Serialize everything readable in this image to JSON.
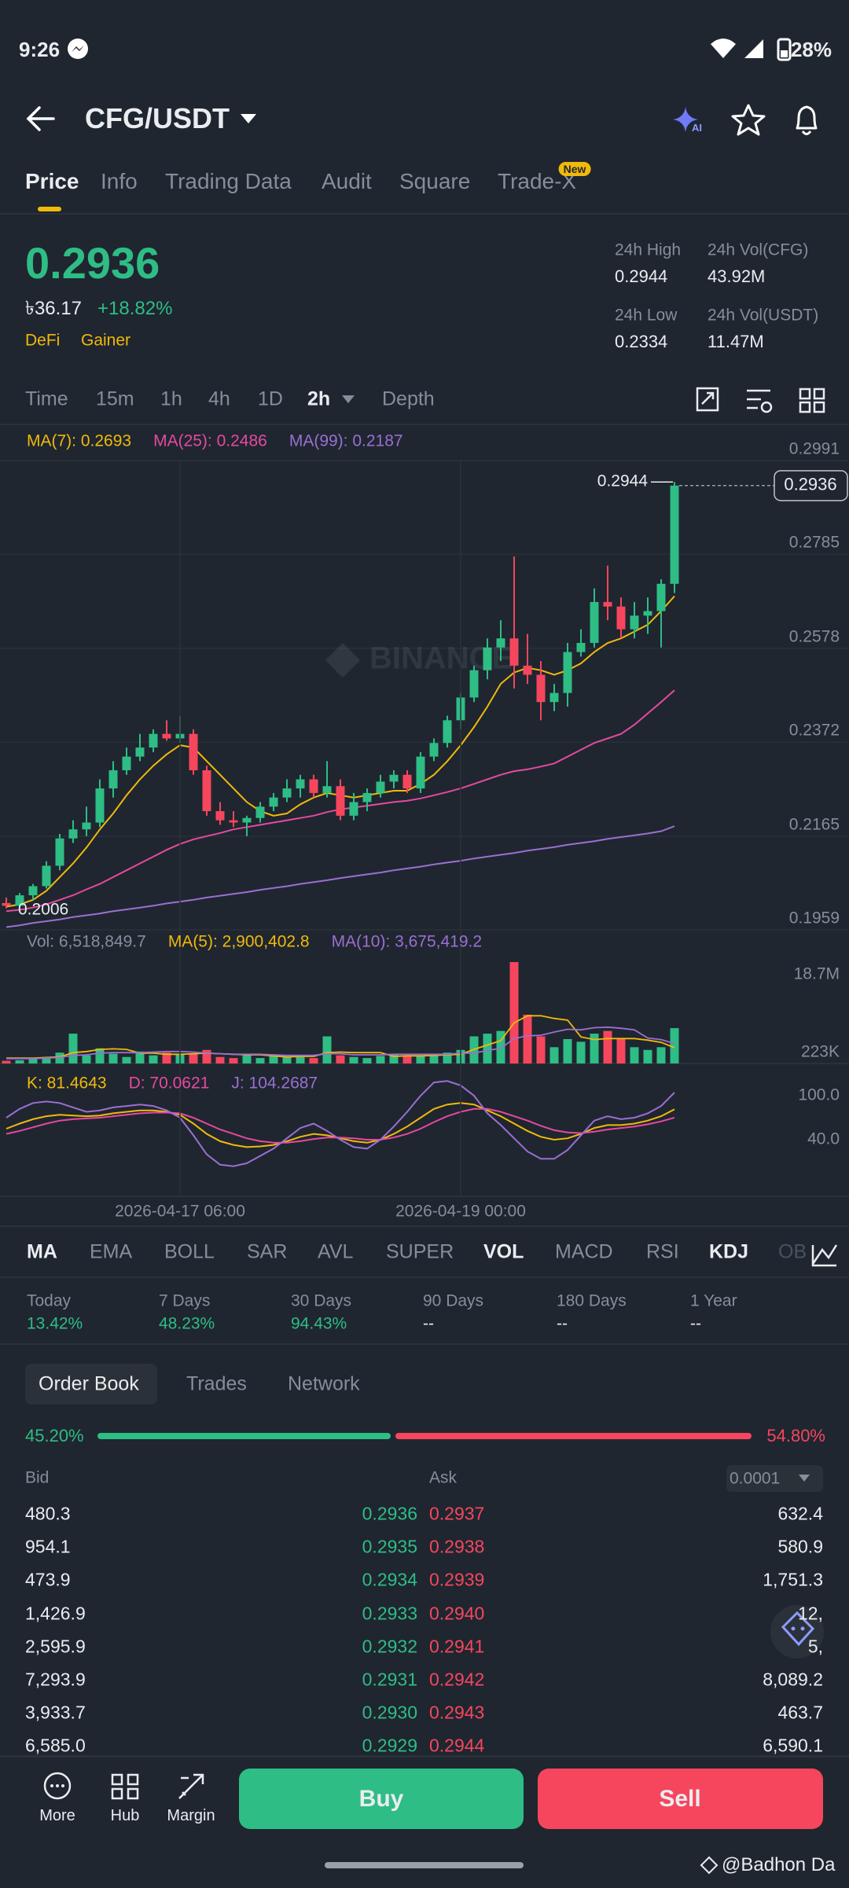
{
  "status_bar": {
    "time": "9:26",
    "battery": "28%"
  },
  "header": {
    "pair": "CFG/USDT"
  },
  "tabs": {
    "items": [
      "Price",
      "Info",
      "Trading Data",
      "Audit",
      "Square",
      "Trade-X"
    ],
    "badge": "New"
  },
  "price_summary": {
    "price": "0.2936",
    "fiat": "৳36.17",
    "change": "+18.82%",
    "tags": [
      "DeFi",
      "Gainer"
    ],
    "stats": [
      {
        "label": "24h High",
        "value": "0.2944"
      },
      {
        "label": "24h Vol(CFG)",
        "value": "43.92M"
      },
      {
        "label": "24h Low",
        "value": "0.2334"
      },
      {
        "label": "24h Vol(USDT)",
        "value": "11.47M"
      }
    ]
  },
  "intervals": [
    {
      "label": "Time",
      "active": false
    },
    {
      "label": "15m",
      "active": false
    },
    {
      "label": "1h",
      "active": false
    },
    {
      "label": "4h",
      "active": false
    },
    {
      "label": "1D",
      "active": false
    },
    {
      "label": "2h",
      "active": true
    },
    {
      "label": "Depth",
      "active": false
    }
  ],
  "chart_data": [
    {
      "type": "candlestick",
      "watermark": "BINANCE",
      "up_color": "#2ebd85",
      "down_color": "#f6465d",
      "candles": [
        [
          0.2018,
          0.203,
          0.2006,
          0.2012
        ],
        [
          0.2012,
          0.204,
          0.2008,
          0.2035
        ],
        [
          0.2035,
          0.206,
          0.2025,
          0.2055
        ],
        [
          0.2055,
          0.211,
          0.205,
          0.21
        ],
        [
          0.21,
          0.217,
          0.209,
          0.216
        ],
        [
          0.216,
          0.22,
          0.215,
          0.218
        ],
        [
          0.218,
          0.223,
          0.2165,
          0.2195
        ],
        [
          0.2195,
          0.229,
          0.2185,
          0.227
        ],
        [
          0.227,
          0.233,
          0.225,
          0.231
        ],
        [
          0.231,
          0.236,
          0.23,
          0.234
        ],
        [
          0.234,
          0.239,
          0.233,
          0.236
        ],
        [
          0.236,
          0.24,
          0.235,
          0.239
        ],
        [
          0.239,
          0.242,
          0.2375,
          0.238
        ],
        [
          0.238,
          0.243,
          0.237,
          0.239
        ],
        [
          0.239,
          0.24,
          0.23,
          0.231
        ],
        [
          0.231,
          0.232,
          0.221,
          0.222
        ],
        [
          0.222,
          0.224,
          0.219,
          0.22
        ],
        [
          0.22,
          0.222,
          0.2185,
          0.2195
        ],
        [
          0.2195,
          0.221,
          0.2165,
          0.2205
        ],
        [
          0.2205,
          0.224,
          0.2195,
          0.223
        ],
        [
          0.223,
          0.226,
          0.222,
          0.225
        ],
        [
          0.225,
          0.229,
          0.224,
          0.227
        ],
        [
          0.227,
          0.23,
          0.225,
          0.229
        ],
        [
          0.229,
          0.23,
          0.225,
          0.226
        ],
        [
          0.226,
          0.233,
          0.225,
          0.2275
        ],
        [
          0.2275,
          0.229,
          0.22,
          0.221
        ],
        [
          0.221,
          0.226,
          0.22,
          0.224
        ],
        [
          0.224,
          0.227,
          0.222,
          0.226
        ],
        [
          0.226,
          0.23,
          0.225,
          0.2285
        ],
        [
          0.2285,
          0.231,
          0.227,
          0.23
        ],
        [
          0.23,
          0.231,
          0.226,
          0.227
        ],
        [
          0.227,
          0.235,
          0.226,
          0.234
        ],
        [
          0.234,
          0.238,
          0.233,
          0.237
        ],
        [
          0.237,
          0.243,
          0.236,
          0.242
        ],
        [
          0.242,
          0.248,
          0.24,
          0.247
        ],
        [
          0.247,
          0.254,
          0.246,
          0.253
        ],
        [
          0.253,
          0.26,
          0.251,
          0.258
        ],
        [
          0.258,
          0.264,
          0.255,
          0.26
        ],
        [
          0.26,
          0.278,
          0.249,
          0.254
        ],
        [
          0.254,
          0.261,
          0.25,
          0.252
        ],
        [
          0.252,
          0.255,
          0.242,
          0.246
        ],
        [
          0.246,
          0.25,
          0.244,
          0.248
        ],
        [
          0.248,
          0.259,
          0.245,
          0.257
        ],
        [
          0.257,
          0.262,
          0.256,
          0.259
        ],
        [
          0.259,
          0.271,
          0.258,
          0.268
        ],
        [
          0.268,
          0.276,
          0.264,
          0.267
        ],
        [
          0.267,
          0.269,
          0.26,
          0.262
        ],
        [
          0.262,
          0.268,
          0.26,
          0.265
        ],
        [
          0.265,
          0.269,
          0.261,
          0.266
        ],
        [
          0.266,
          0.273,
          0.258,
          0.272
        ],
        [
          0.272,
          0.2944,
          0.27,
          0.2936
        ]
      ],
      "series": [
        {
          "name": "MA(7): 0.2693",
          "color": "#f0b90b",
          "values": [
            0.201,
            0.2015,
            0.2025,
            0.2045,
            0.2075,
            0.2105,
            0.214,
            0.218,
            0.2215,
            0.2255,
            0.229,
            0.232,
            0.2345,
            0.2365,
            0.236,
            0.233,
            0.23,
            0.227,
            0.224,
            0.222,
            0.221,
            0.2215,
            0.2235,
            0.225,
            0.226,
            0.2255,
            0.225,
            0.2255,
            0.226,
            0.2265,
            0.2265,
            0.228,
            0.23,
            0.233,
            0.2365,
            0.2405,
            0.245,
            0.25,
            0.2525,
            0.2535,
            0.253,
            0.252,
            0.253,
            0.2545,
            0.257,
            0.259,
            0.26,
            0.2615,
            0.263,
            0.266,
            0.2693
          ]
        },
        {
          "name": "MA(25): 0.2486",
          "color": "#e649a0",
          "values": [
            0.2,
            0.2003,
            0.2008,
            0.2015,
            0.2025,
            0.2035,
            0.2048,
            0.206,
            0.2075,
            0.209,
            0.2105,
            0.212,
            0.2135,
            0.2148,
            0.2158,
            0.2165,
            0.2172,
            0.218,
            0.2185,
            0.219,
            0.2195,
            0.22,
            0.2205,
            0.221,
            0.2218,
            0.2224,
            0.2228,
            0.2232,
            0.2236,
            0.224,
            0.2243,
            0.2248,
            0.2255,
            0.2262,
            0.227,
            0.228,
            0.229,
            0.23,
            0.2308,
            0.2312,
            0.2318,
            0.2325,
            0.234,
            0.2355,
            0.237,
            0.238,
            0.239,
            0.241,
            0.2435,
            0.246,
            0.2486
          ]
        },
        {
          "name": "MA(99): 0.2187",
          "color": "#9b6fd1",
          "values": [
            0.1965,
            0.1969,
            0.1974,
            0.1978,
            0.1982,
            0.1987,
            0.1991,
            0.1995,
            0.2,
            0.2004,
            0.2008,
            0.2012,
            0.2017,
            0.2021,
            0.2025,
            0.203,
            0.2034,
            0.2038,
            0.2042,
            0.2047,
            0.2051,
            0.2055,
            0.206,
            0.2064,
            0.2068,
            0.2073,
            0.2077,
            0.2081,
            0.2085,
            0.209,
            0.2094,
            0.2098,
            0.2103,
            0.2107,
            0.2111,
            0.2116,
            0.212,
            0.2124,
            0.2128,
            0.2133,
            0.2137,
            0.2141,
            0.2146,
            0.215,
            0.2154,
            0.2159,
            0.2163,
            0.2167,
            0.2171,
            0.2176,
            0.2187
          ]
        }
      ],
      "annotations": {
        "high": 0.2944,
        "low": 0.2006,
        "last": 0.2936
      },
      "ylim": [
        0.1959,
        0.2991
      ],
      "yticks": [
        0.2991,
        0.2785,
        0.2578,
        0.2372,
        0.2165,
        0.1959
      ],
      "grid": true
    },
    {
      "type": "volume",
      "title": "Vol: 6,518,849.7",
      "values": [
        500000,
        600000,
        800000,
        1200000,
        2000000,
        5500000,
        1500000,
        2800000,
        1800000,
        1200000,
        2200000,
        1500000,
        2000000,
        1600000,
        1800000,
        2500000,
        1200000,
        1000000,
        1600000,
        1000000,
        1400000,
        1200000,
        1500000,
        1000000,
        5000000,
        1500000,
        1200000,
        1000000,
        1400000,
        1600000,
        1300000,
        1500000,
        1800000,
        2000000,
        2500000,
        5000000,
        5500000,
        6000000,
        18700000,
        9000000,
        5000000,
        3000000,
        4500000,
        4000000,
        5500000,
        6000000,
        4500000,
        3000000,
        2500000,
        3000000,
        6518849.7
      ],
      "series": [
        {
          "name": "MA(5): 2,900,402.8",
          "color": "#f0b90b",
          "values": [
            1000000,
            1000000,
            1000000,
            1100000,
            1200000,
            2000000,
            2200000,
            2600000,
            2700000,
            2600000,
            1900000,
            1900000,
            1700000,
            1700000,
            1800000,
            1900000,
            1800000,
            1700000,
            1600000,
            1600000,
            1400000,
            1200000,
            1300000,
            1300000,
            2000000,
            2100000,
            2000000,
            2000000,
            2000000,
            1300000,
            1400000,
            1400000,
            1500000,
            1600000,
            1700000,
            2600000,
            3400000,
            4200000,
            7500000,
            8800000,
            8800000,
            8300000,
            8000000,
            4900000,
            4400000,
            4600000,
            4600000,
            4600000,
            4300000,
            3900000,
            2900402.8
          ]
        },
        {
          "name": "MA(10): 3,675,419.2",
          "color": "#9b6fd1",
          "values": [
            900000,
            900000,
            900000,
            1000000,
            1100000,
            1500000,
            1600000,
            1900000,
            2000000,
            2000000,
            2000000,
            2100000,
            2200000,
            2200000,
            2100000,
            1900000,
            1800000,
            1700000,
            1700000,
            1700000,
            1600000,
            1500000,
            1500000,
            1500000,
            1800000,
            1800000,
            1600000,
            1600000,
            1600000,
            1700000,
            1700000,
            1700000,
            1700000,
            1700000,
            1900000,
            1900000,
            2400000,
            2800000,
            4600000,
            5100000,
            5200000,
            5800000,
            6300000,
            6200000,
            6600000,
            6700000,
            6500000,
            6200000,
            4700000,
            4400000,
            3675419.2
          ]
        }
      ],
      "ylim": [
        0,
        18700000
      ],
      "yticks": [
        {
          "value": 18700000,
          "label": "18.7M"
        },
        {
          "value": 223000,
          "label": "223K"
        }
      ]
    },
    {
      "type": "line",
      "categories": [
        null,
        null,
        null,
        null,
        null,
        null,
        null,
        null,
        null,
        null,
        null,
        null,
        null,
        "2026-04-17 06:00",
        null,
        null,
        null,
        null,
        null,
        null,
        null,
        null,
        null,
        null,
        null,
        null,
        null,
        null,
        null,
        null,
        null,
        null,
        null,
        null,
        "2026-04-19 00:00",
        null,
        null,
        null,
        null,
        null,
        null,
        null,
        null,
        null,
        null,
        null,
        null,
        null,
        null,
        null,
        null
      ],
      "series": [
        {
          "name": "K: 81.4643",
          "color": "#f0b90b",
          "values": [
            55,
            62,
            68,
            72,
            74,
            73,
            72,
            73,
            76,
            78,
            80,
            80,
            78,
            74,
            62,
            48,
            38,
            33,
            30,
            31,
            33,
            38,
            44,
            48,
            46,
            42,
            38,
            36,
            40,
            48,
            58,
            70,
            82,
            88,
            90,
            88,
            80,
            72,
            62,
            52,
            44,
            40,
            42,
            48,
            56,
            60,
            60,
            62,
            66,
            72,
            81.4643
          ]
        },
        {
          "name": "D: 70.0621",
          "color": "#e649a0",
          "values": [
            48,
            52,
            57,
            62,
            66,
            68,
            69,
            70,
            72,
            74,
            76,
            77,
            77,
            76,
            70,
            62,
            54,
            48,
            42,
            38,
            36,
            36,
            38,
            41,
            43,
            43,
            42,
            40,
            40,
            43,
            48,
            55,
            64,
            72,
            78,
            82,
            82,
            78,
            72,
            66,
            59,
            53,
            50,
            49,
            51,
            54,
            56,
            58,
            61,
            65,
            70.0621
          ]
        },
        {
          "name": "J: 104.2687",
          "color": "#9b6fd1",
          "values": [
            70,
            82,
            90,
            92,
            90,
            84,
            78,
            80,
            84,
            86,
            88,
            86,
            80,
            70,
            46,
            20,
            6,
            4,
            8,
            18,
            28,
            42,
            56,
            62,
            52,
            40,
            30,
            28,
            40,
            58,
            78,
            100,
            118,
            120,
            114,
            100,
            76,
            60,
            42,
            24,
            14,
            14,
            26,
            46,
            66,
            72,
            68,
            70,
            76,
            86,
            104.2687
          ]
        }
      ],
      "ylim": [
        -37,
        131
      ],
      "yticks": [
        {
          "value": 100,
          "label": "100.0"
        },
        {
          "value": 40,
          "label": "40.0"
        }
      ]
    }
  ],
  "indicators": [
    {
      "label": "MA",
      "active": true
    },
    {
      "label": "EMA",
      "active": false
    },
    {
      "label": "BOLL",
      "active": false
    },
    {
      "label": "SAR",
      "active": false
    },
    {
      "label": "AVL",
      "active": false
    },
    {
      "label": "SUPER",
      "active": false
    },
    {
      "label": "VOL",
      "active": true
    },
    {
      "label": "MACD",
      "active": false
    },
    {
      "label": "RSI",
      "active": false
    },
    {
      "label": "KDJ",
      "active": true
    },
    {
      "label": "OB",
      "active": false
    }
  ],
  "performance": [
    {
      "label": "Today",
      "value": "13.42%"
    },
    {
      "label": "7 Days",
      "value": "48.23%"
    },
    {
      "label": "30 Days",
      "value": "94.43%"
    },
    {
      "label": "90 Days",
      "value": "--"
    },
    {
      "label": "180 Days",
      "value": "--"
    },
    {
      "label": "1 Year",
      "value": "--"
    }
  ],
  "order_book": {
    "tabs": [
      "Order Book",
      "Trades",
      "Network"
    ],
    "ratio": {
      "values": [
        45.2,
        54.8
      ],
      "value_labels": [
        "45.20%",
        "54.80%"
      ]
    },
    "headers": [
      "Bid",
      "Ask"
    ],
    "precision": "0.0001",
    "rows": [
      [
        "480.3",
        "0.2936",
        "0.2937",
        "632.4"
      ],
      [
        "954.1",
        "0.2935",
        "0.2938",
        "580.9"
      ],
      [
        "473.9",
        "0.2934",
        "0.2939",
        "1,751.3"
      ],
      [
        "1,426.9",
        "0.2933",
        "0.2940",
        "12,"
      ],
      [
        "2,595.9",
        "0.2932",
        "0.2941",
        "5,"
      ],
      [
        "7,293.9",
        "0.2931",
        "0.2942",
        "8,089.2"
      ],
      [
        "3,933.7",
        "0.2930",
        "0.2943",
        "463.7"
      ],
      [
        "6,585.0",
        "0.2929",
        "0.2944",
        "6,590.1"
      ]
    ]
  },
  "bottom_nav": {
    "items": [
      "More",
      "Hub",
      "Margin"
    ],
    "buy": "Buy",
    "sell": "Sell"
  },
  "watermark": "@Badhon Da"
}
